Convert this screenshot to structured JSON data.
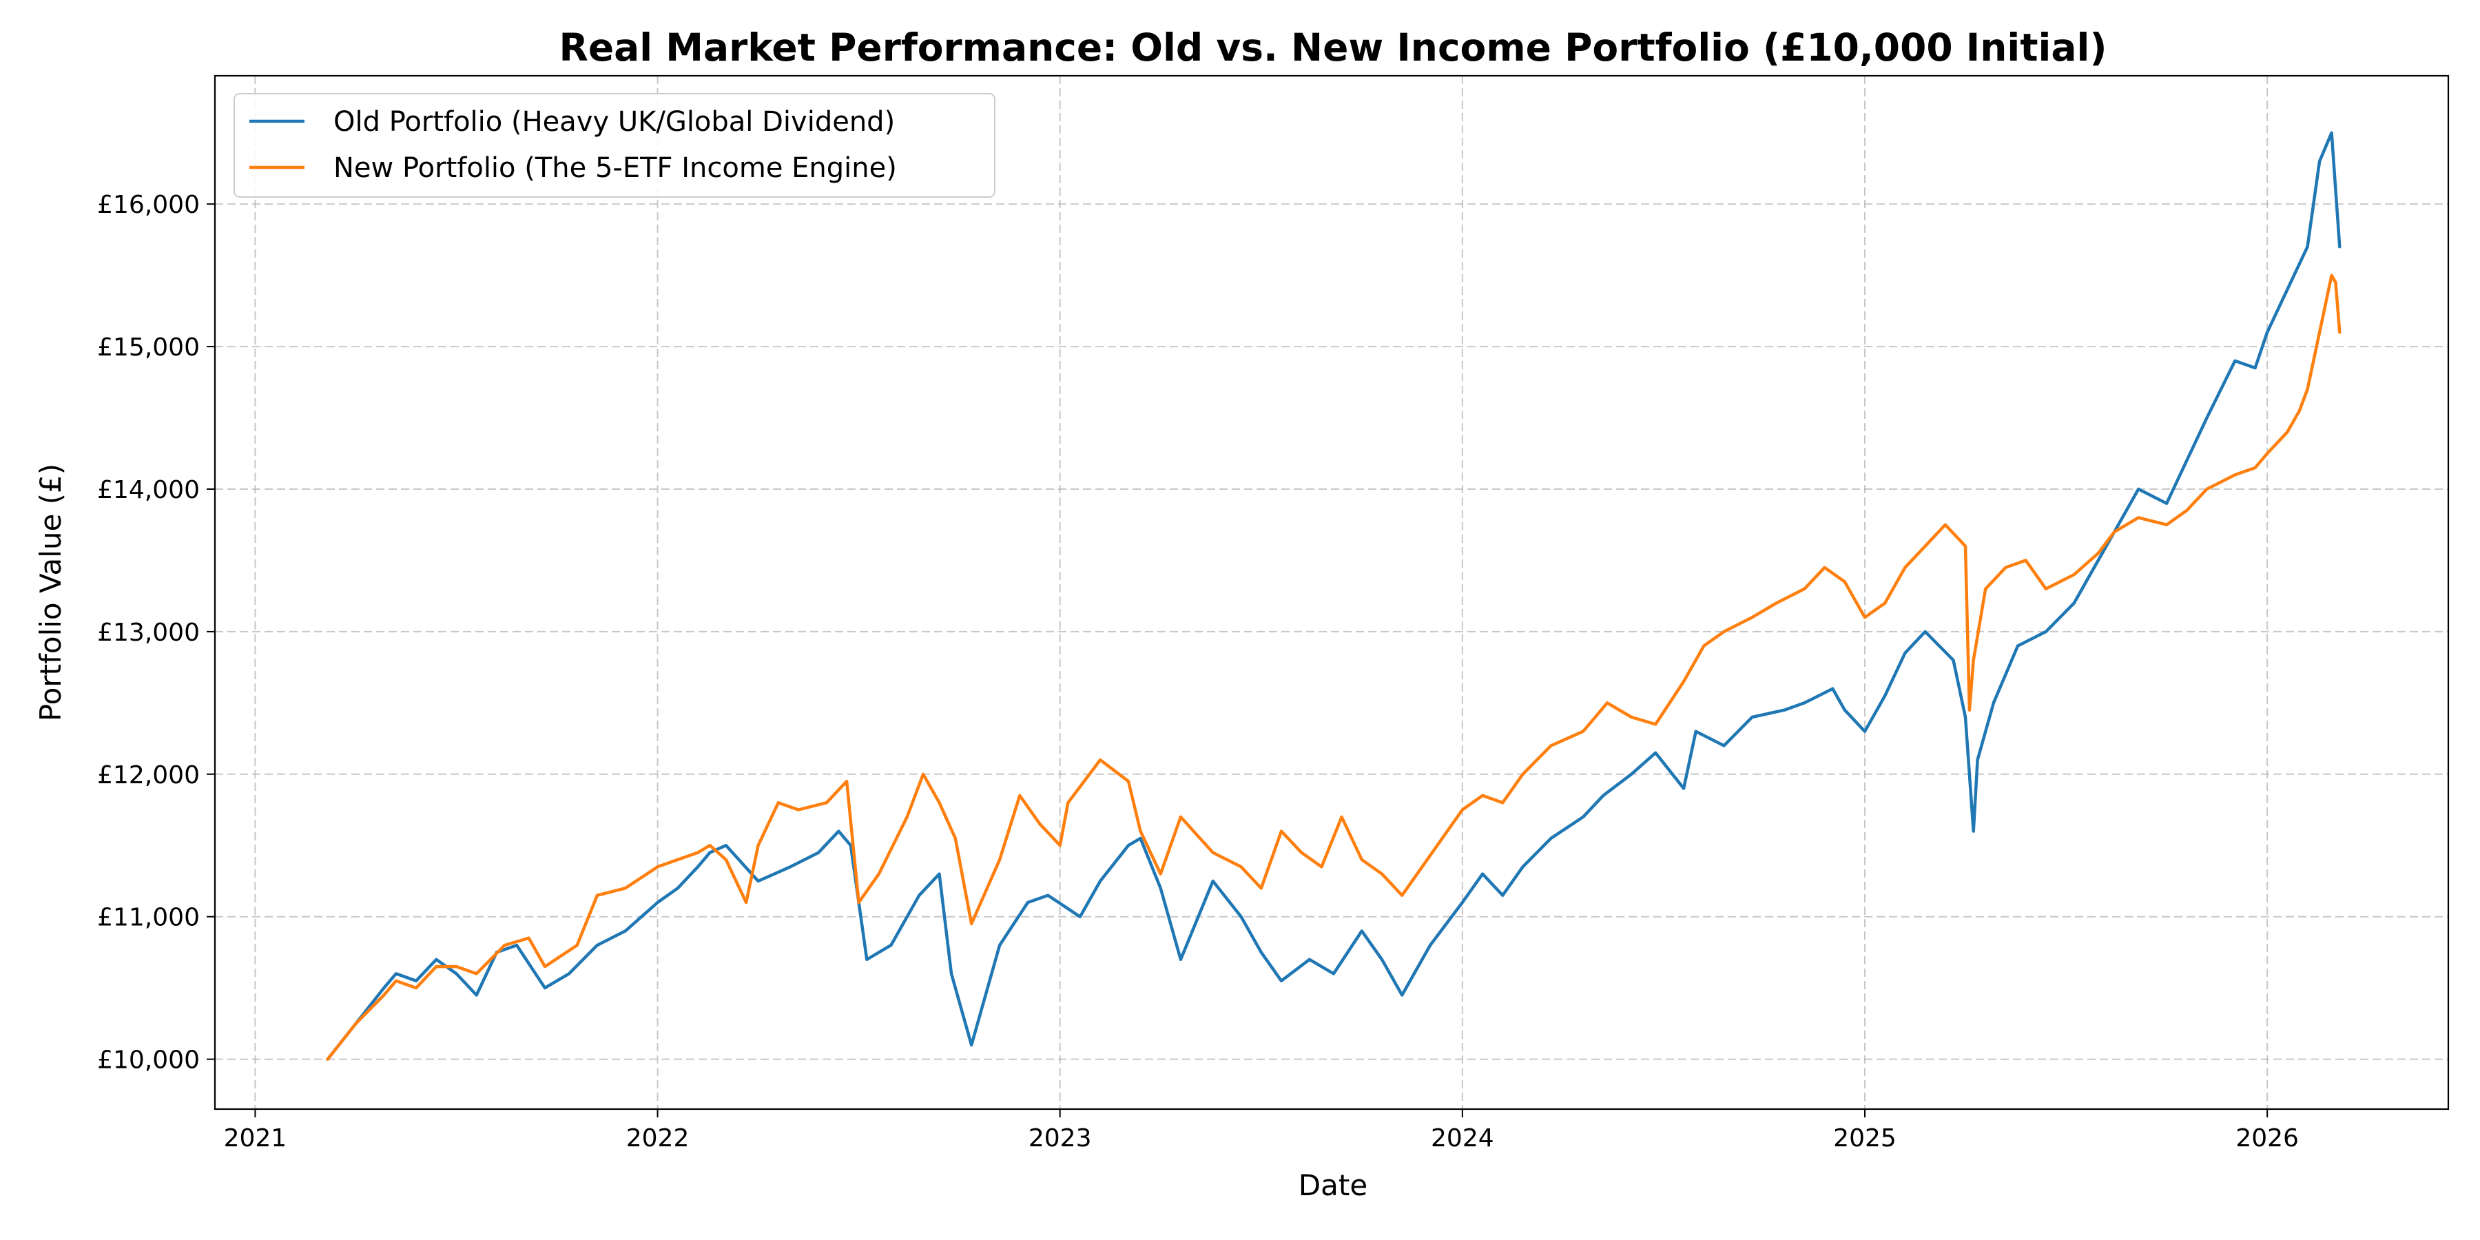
{
  "chart_data": {
    "type": "line",
    "title": "Real Market Performance: Old vs. New Income Portfolio (£10,000 Initial)",
    "xlabel": "Date",
    "ylabel": "Portfolio Value (£)",
    "xlim": [
      2020.9,
      2026.45
    ],
    "ylim": [
      9650,
      16900
    ],
    "x_ticks": [
      2021,
      2022,
      2023,
      2024,
      2025,
      2026
    ],
    "x_tick_labels": [
      "2021",
      "2022",
      "2023",
      "2024",
      "2025",
      "2026"
    ],
    "y_ticks": [
      10000,
      11000,
      12000,
      13000,
      14000,
      15000,
      16000
    ],
    "y_tick_labels": [
      "£10,000",
      "£11,000",
      "£12,000",
      "£13,000",
      "£14,000",
      "£15,000",
      "£16,000"
    ],
    "grid": true,
    "legend_position": "top-left",
    "series": [
      {
        "name": "Old Portfolio (Heavy UK/Global Dividend)",
        "color": "#1f77b4",
        "x": [
          2021.18,
          2021.25,
          2021.32,
          2021.35,
          2021.4,
          2021.45,
          2021.5,
          2021.55,
          2021.6,
          2021.65,
          2021.72,
          2021.78,
          2021.85,
          2021.92,
          2022.0,
          2022.05,
          2022.1,
          2022.13,
          2022.17,
          2022.25,
          2022.33,
          2022.4,
          2022.45,
          2022.48,
          2022.52,
          2022.58,
          2022.65,
          2022.7,
          2022.73,
          2022.78,
          2022.85,
          2022.92,
          2022.97,
          2023.05,
          2023.1,
          2023.17,
          2023.2,
          2023.25,
          2023.3,
          2023.38,
          2023.45,
          2023.5,
          2023.55,
          2023.62,
          2023.68,
          2023.75,
          2023.8,
          2023.85,
          2023.92,
          2024.0,
          2024.05,
          2024.1,
          2024.15,
          2024.22,
          2024.3,
          2024.35,
          2024.42,
          2024.48,
          2024.55,
          2024.58,
          2024.65,
          2024.72,
          2024.8,
          2024.85,
          2024.92,
          2024.95,
          2025.0,
          2025.05,
          2025.1,
          2025.15,
          2025.22,
          2025.25,
          2025.27,
          2025.28,
          2025.32,
          2025.38,
          2025.45,
          2025.52,
          2025.58,
          2025.62,
          2025.68,
          2025.75,
          2025.8,
          2025.85,
          2025.92,
          2025.97,
          2026.0,
          2026.05,
          2026.1,
          2026.13,
          2026.16,
          2026.17,
          2026.18
        ],
        "y": [
          10000,
          10250,
          10500,
          10600,
          10550,
          10700,
          10600,
          10450,
          10750,
          10800,
          10500,
          10600,
          10800,
          10900,
          11100,
          11200,
          11350,
          11450,
          11500,
          11250,
          11350,
          11450,
          11600,
          11500,
          10700,
          10800,
          11150,
          11300,
          10600,
          10100,
          10800,
          11100,
          11150,
          11000,
          11250,
          11500,
          11550,
          11200,
          10700,
          11250,
          11000,
          10750,
          10550,
          10700,
          10600,
          10900,
          10700,
          10450,
          10800,
          11100,
          11300,
          11150,
          11350,
          11550,
          11700,
          11850,
          12000,
          12150,
          11900,
          12300,
          12200,
          12400,
          12450,
          12500,
          12600,
          12450,
          12300,
          12550,
          12850,
          13000,
          12800,
          12400,
          11600,
          12100,
          12500,
          12900,
          13000,
          13200,
          13500,
          13700,
          14000,
          13900,
          14200,
          14500,
          14900,
          14850,
          15100,
          15400,
          15700,
          16300,
          16500,
          16100,
          15700
        ]
      },
      {
        "name": "New Portfolio (The 5-ETF Income Engine)",
        "color": "#ff7f0e",
        "x": [
          2021.18,
          2021.25,
          2021.32,
          2021.35,
          2021.4,
          2021.45,
          2021.5,
          2021.55,
          2021.62,
          2021.68,
          2021.72,
          2021.8,
          2021.85,
          2021.92,
          2022.0,
          2022.05,
          2022.1,
          2022.13,
          2022.17,
          2022.22,
          2022.25,
          2022.3,
          2022.35,
          2022.42,
          2022.47,
          2022.5,
          2022.55,
          2022.62,
          2022.66,
          2022.7,
          2022.74,
          2022.78,
          2022.85,
          2022.9,
          2022.95,
          2023.0,
          2023.02,
          2023.1,
          2023.17,
          2023.2,
          2023.25,
          2023.3,
          2023.38,
          2023.45,
          2023.5,
          2023.55,
          2023.6,
          2023.65,
          2023.7,
          2023.75,
          2023.8,
          2023.85,
          2023.9,
          2024.0,
          2024.05,
          2024.1,
          2024.15,
          2024.22,
          2024.3,
          2024.36,
          2024.42,
          2024.48,
          2024.55,
          2024.6,
          2024.65,
          2024.72,
          2024.78,
          2024.85,
          2024.9,
          2024.95,
          2025.0,
          2025.05,
          2025.1,
          2025.15,
          2025.2,
          2025.25,
          2025.26,
          2025.27,
          2025.3,
          2025.35,
          2025.4,
          2025.45,
          2025.52,
          2025.58,
          2025.62,
          2025.68,
          2025.75,
          2025.8,
          2025.85,
          2025.92,
          2025.97,
          2026.0,
          2026.05,
          2026.08,
          2026.1,
          2026.13,
          2026.16,
          2026.17,
          2026.18
        ],
        "y": [
          10000,
          10250,
          10450,
          10550,
          10500,
          10650,
          10650,
          10600,
          10800,
          10850,
          10650,
          10800,
          11150,
          11200,
          11350,
          11400,
          11450,
          11500,
          11400,
          11100,
          11500,
          11800,
          11750,
          11800,
          11950,
          11100,
          11300,
          11700,
          12000,
          11800,
          11550,
          10950,
          11400,
          11850,
          11650,
          11500,
          11800,
          12100,
          11950,
          11600,
          11300,
          11700,
          11450,
          11350,
          11200,
          11600,
          11450,
          11350,
          11700,
          11400,
          11300,
          11150,
          11350,
          11750,
          11850,
          11800,
          12000,
          12200,
          12300,
          12500,
          12400,
          12350,
          12650,
          12900,
          13000,
          13100,
          13200,
          13300,
          13450,
          13350,
          13100,
          13200,
          13450,
          13600,
          13750,
          13600,
          12450,
          12800,
          13300,
          13450,
          13500,
          13300,
          13400,
          13550,
          13700,
          13800,
          13750,
          13850,
          14000,
          14100,
          14150,
          14250,
          14400,
          14550,
          14700,
          15100,
          15500,
          15450,
          15100
        ]
      }
    ]
  }
}
